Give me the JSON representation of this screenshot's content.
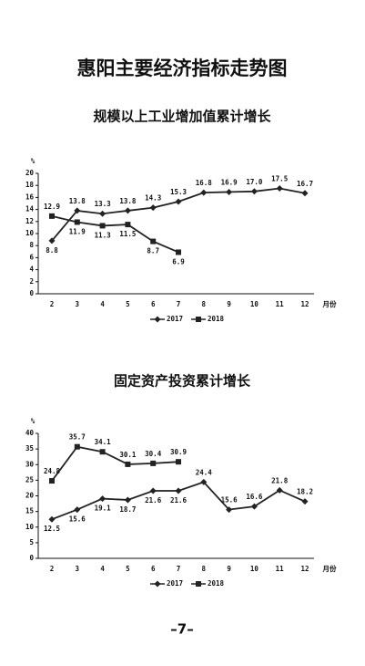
{
  "title": "惠阳主要经济指标走势图",
  "page_number": "–7–",
  "chart_data": [
    {
      "type": "line",
      "title": "规模以上工业增加值累计增长",
      "y_label": "%",
      "x_label": "月份",
      "categories": [
        "2",
        "3",
        "4",
        "5",
        "6",
        "7",
        "8",
        "9",
        "10",
        "11",
        "12"
      ],
      "ylim": [
        0,
        20
      ],
      "yticks": [
        0,
        2,
        4,
        6,
        8,
        10,
        12,
        14,
        16,
        18,
        20
      ],
      "series": [
        {
          "name": "2017",
          "color": "#222222",
          "marker": "diamond",
          "values": [
            8.8,
            13.8,
            13.3,
            13.8,
            14.3,
            15.3,
            16.8,
            16.9,
            17.0,
            17.5,
            16.7
          ],
          "value_labels": [
            "8.8",
            "13.8",
            "13.3",
            "13.8",
            "14.3",
            "15.3",
            "16.8",
            "16.9",
            "17.0",
            "17.5",
            "16.7"
          ]
        },
        {
          "name": "2018",
          "color": "#222222",
          "marker": "square",
          "values": [
            12.9,
            11.9,
            11.3,
            11.5,
            8.7,
            6.9,
            null,
            null,
            null,
            null,
            null
          ],
          "value_labels": [
            "12.9",
            "11.9",
            "11.3",
            "11.5",
            "8.7",
            "6.9",
            null,
            null,
            null,
            null,
            null
          ]
        }
      ]
    },
    {
      "type": "line",
      "title": "固定资产投资累计增长",
      "y_label": "%",
      "x_label": "月份",
      "categories": [
        "2",
        "3",
        "4",
        "5",
        "6",
        "7",
        "8",
        "9",
        "10",
        "11",
        "12"
      ],
      "ylim": [
        0,
        40
      ],
      "yticks": [
        0,
        5,
        10,
        15,
        20,
        25,
        30,
        35,
        40
      ],
      "series": [
        {
          "name": "2017",
          "color": "#222222",
          "marker": "diamond",
          "values": [
            12.5,
            15.6,
            19.1,
            18.7,
            21.6,
            21.6,
            24.4,
            15.6,
            16.6,
            21.8,
            18.2
          ],
          "value_labels": [
            "12.5",
            "15.6",
            "19.1",
            "18.7",
            "21.6",
            "21.6",
            "24.4",
            "15.6",
            "16.6",
            "21.8",
            "18.2"
          ]
        },
        {
          "name": "2018",
          "color": "#222222",
          "marker": "square",
          "values": [
            24.8,
            35.7,
            34.1,
            30.1,
            30.4,
            30.9,
            null,
            null,
            null,
            null,
            null
          ],
          "value_labels": [
            "24.8",
            "35.7",
            "34.1",
            "30.1",
            "30.4",
            "30.9",
            null,
            null,
            null,
            null,
            null
          ]
        }
      ]
    }
  ]
}
